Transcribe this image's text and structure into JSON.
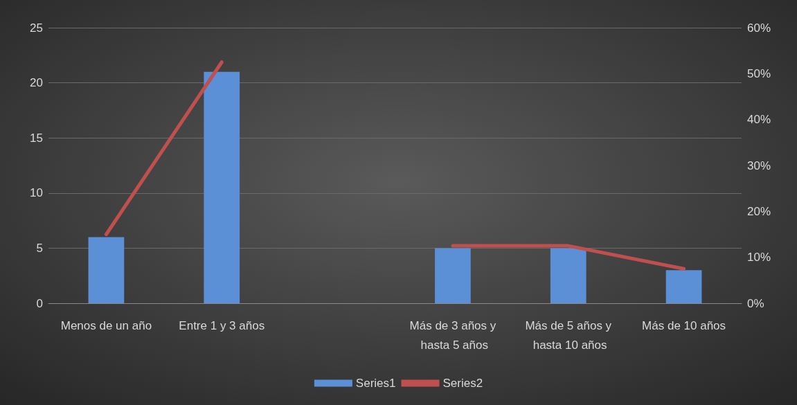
{
  "chart_data": {
    "type": "bar",
    "categories": [
      "Menos de un año",
      "Entre 1 y 3 años",
      null,
      "Más de 3 años y hasta 5 años",
      "Más de 5 años y hasta 10 años",
      "Más de 10 años"
    ],
    "series": [
      {
        "name": "Series1",
        "color": "#5b8fd6",
        "values": [
          6,
          21,
          null,
          5,
          5,
          3
        ]
      },
      {
        "name": "Series2",
        "type": "line",
        "axis": "y2",
        "color": "#c0504d",
        "values": [
          15,
          52.5,
          null,
          12.5,
          12.5,
          7.5
        ],
        "marker": "none"
      }
    ],
    "ylim": [
      0,
      25
    ],
    "yticks": [
      0,
      5,
      10,
      15,
      20,
      25
    ],
    "y2lim": [
      0,
      60
    ],
    "y2ticks": [
      {
        "value": 0,
        "label": "0%"
      },
      {
        "value": 10,
        "label": "10%"
      },
      {
        "value": 20,
        "label": "20%"
      },
      {
        "value": 30,
        "label": "30%"
      },
      {
        "value": 40,
        "label": "40%"
      },
      {
        "value": 50,
        "label": "50%"
      },
      {
        "value": 60,
        "label": "60%"
      }
    ],
    "grid": "y",
    "legend": "bottom"
  }
}
